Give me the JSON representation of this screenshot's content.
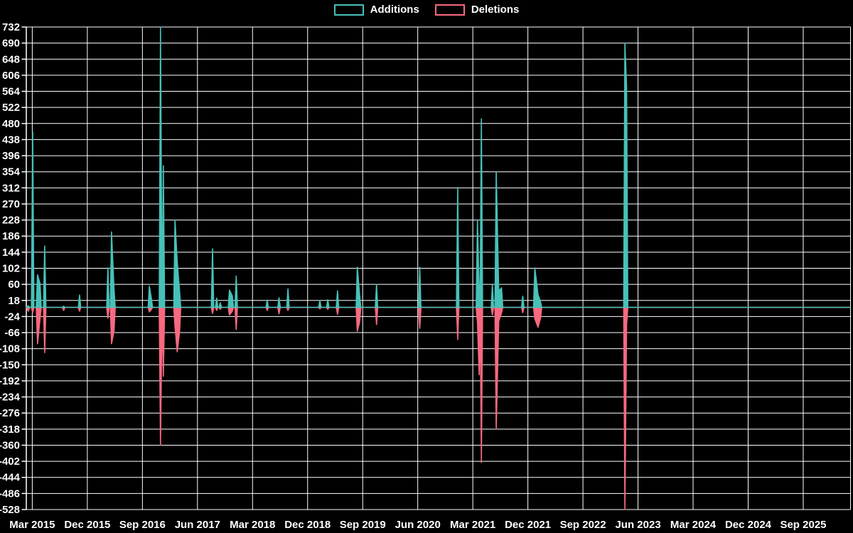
{
  "legend": {
    "additions_label": "Additions",
    "deletions_label": "Deletions"
  },
  "colors": {
    "additions": "#47c1b8",
    "deletions": "#f8697f",
    "grid": "#ffffff",
    "text": "#ffffff",
    "background": "#000000"
  },
  "chart_data": {
    "type": "line",
    "title": "",
    "xlabel": "",
    "ylabel": "",
    "y_min": -528,
    "y_max": 732,
    "y_tick_step": 42,
    "grid": true,
    "legend_position": "top-center",
    "x_ticks": [
      "Mar 2015",
      "Dec 2015",
      "Sep 2016",
      "Jun 2017",
      "Mar 2018",
      "Dec 2018",
      "Sep 2019",
      "Jun 2020",
      "Mar 2021",
      "Dec 2021",
      "Sep 2022",
      "Jun 2023",
      "Mar 2024",
      "Dec 2024",
      "Sep 2025"
    ],
    "x_tick_start_date": "2015-03-01",
    "x_tick_interval_months": 9,
    "series": [
      {
        "name": "Additions",
        "color_key": "additions",
        "value_index": 1
      },
      {
        "name": "Deletions",
        "color_key": "deletions",
        "value_index": 2
      }
    ],
    "points": [
      [
        "2015-02-01",
        0,
        0
      ],
      [
        "2015-02-12",
        4,
        -10
      ],
      [
        "2015-03-03",
        458,
        -14
      ],
      [
        "2015-03-27",
        85,
        -95
      ],
      [
        "2015-04-09",
        62,
        -30
      ],
      [
        "2015-05-02",
        160,
        -118
      ],
      [
        "2015-08-05",
        3,
        -8
      ],
      [
        "2015-10-23",
        32,
        -10
      ],
      [
        "2016-03-12",
        103,
        -28
      ],
      [
        "2016-03-30",
        197,
        -95
      ],
      [
        "2016-04-12",
        48,
        -62
      ],
      [
        "2016-10-05",
        55,
        -12
      ],
      [
        "2016-10-15",
        24,
        -6
      ],
      [
        "2016-11-30",
        732,
        -360
      ],
      [
        "2016-12-07",
        15,
        -20
      ],
      [
        "2016-12-14",
        370,
        -180
      ],
      [
        "2017-02-11",
        228,
        -50
      ],
      [
        "2017-02-22",
        120,
        -116
      ],
      [
        "2017-03-03",
        42,
        -64
      ],
      [
        "2017-08-15",
        153,
        -16
      ],
      [
        "2017-09-05",
        24,
        -8
      ],
      [
        "2017-09-23",
        12,
        -5
      ],
      [
        "2017-11-08",
        45,
        -20
      ],
      [
        "2017-11-22",
        30,
        -10
      ],
      [
        "2017-12-11",
        82,
        -58
      ],
      [
        "2018-05-13",
        19,
        -8
      ],
      [
        "2018-07-11",
        25,
        -17
      ],
      [
        "2018-08-25",
        48,
        -8
      ],
      [
        "2019-02-01",
        18,
        -4
      ],
      [
        "2019-03-10",
        20,
        -5
      ],
      [
        "2019-04-28",
        43,
        -18
      ],
      [
        "2019-08-05",
        105,
        -62
      ],
      [
        "2019-08-16",
        32,
        -38
      ],
      [
        "2019-11-09",
        60,
        -45
      ],
      [
        "2020-06-11",
        105,
        -55
      ],
      [
        "2020-12-17",
        313,
        -84
      ],
      [
        "2021-03-24",
        227,
        -40
      ],
      [
        "2021-04-02",
        45,
        -176
      ],
      [
        "2021-04-07",
        30,
        -15
      ],
      [
        "2021-04-13",
        492,
        -405
      ],
      [
        "2021-06-07",
        58,
        -20
      ],
      [
        "2021-06-26",
        354,
        -318
      ],
      [
        "2021-07-08",
        42,
        -36
      ],
      [
        "2021-07-22",
        51,
        -15
      ],
      [
        "2021-11-06",
        29,
        -14
      ],
      [
        "2022-01-05",
        103,
        -30
      ],
      [
        "2022-01-21",
        33,
        -52
      ],
      [
        "2022-02-03",
        15,
        -28
      ],
      [
        "2023-03-27",
        690,
        -528
      ],
      [
        "2023-04-05",
        575,
        -45
      ],
      [
        "2026-04-21",
        0,
        0
      ]
    ]
  }
}
